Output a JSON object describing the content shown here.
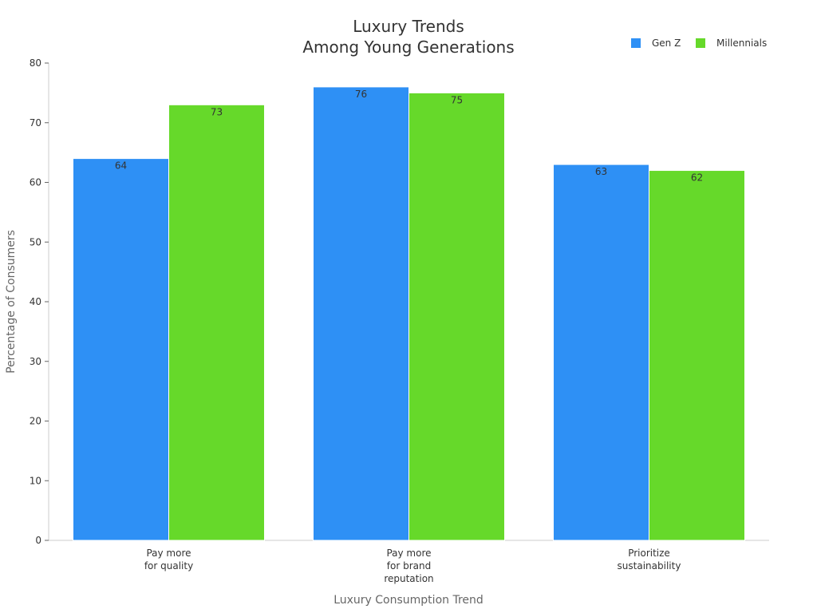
{
  "chart_data": {
    "type": "bar",
    "title_lines": [
      "Luxury Trends",
      "Among Young Generations"
    ],
    "xlabel": "Luxury Consumption Trend",
    "ylabel": "Percentage of Consumers",
    "ylim": [
      0,
      80
    ],
    "yticks": [
      0,
      10,
      20,
      30,
      40,
      50,
      60,
      70,
      80
    ],
    "categories": [
      [
        "Pay more",
        "for quality"
      ],
      [
        "Pay more",
        "for brand",
        "reputation"
      ],
      [
        "Prioritize",
        "sustainability"
      ]
    ],
    "series": [
      {
        "name": "Gen Z",
        "color": "#2e90f5",
        "values": [
          64,
          76,
          63
        ]
      },
      {
        "name": "Millennials",
        "color": "#66d92a",
        "values": [
          73,
          75,
          62
        ]
      }
    ],
    "legend_position": "top-right",
    "grid": false
  }
}
